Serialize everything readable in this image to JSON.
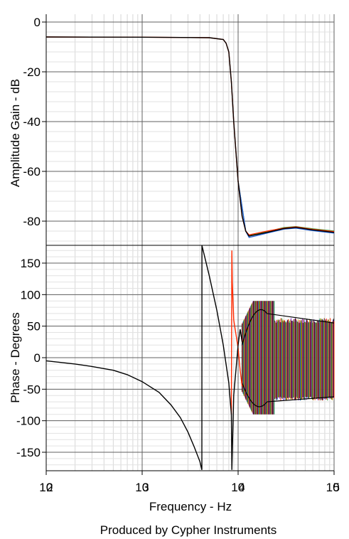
{
  "chart_data": [
    {
      "type": "line",
      "panel": "amplitude",
      "ylabel": "Amplitude Gain - dB",
      "x_scale": "log",
      "xlim": [
        100,
        100000
      ],
      "ylim": [
        -96,
        0
      ],
      "yticks": [
        0,
        -20,
        -40,
        -60,
        -80
      ],
      "ytick_labels": [
        "0",
        "-20",
        "-40",
        "-60",
        "-80"
      ],
      "grid": true,
      "series": [
        {
          "color": "#000000",
          "x": [
            100,
            1000,
            5000,
            7000,
            7500,
            8000,
            8500,
            9000,
            10000,
            11000,
            12000,
            13000,
            15000,
            20000,
            30000,
            40000,
            60000,
            100000
          ],
          "y": [
            -6.0,
            -6.1,
            -6.3,
            -7.0,
            -8.5,
            -12,
            -24,
            -40,
            -64,
            -78,
            -84,
            -86,
            -85.5,
            -84.5,
            -83,
            -82.5,
            -83.5,
            -84.5
          ]
        },
        {
          "color": "#ff2a00",
          "x": [
            100,
            1000,
            5000,
            7000,
            7500,
            8000,
            8500,
            9000,
            10000,
            11000,
            12000,
            13000,
            15000,
            20000,
            30000,
            40000,
            60000,
            100000
          ],
          "y": [
            -6.0,
            -6.1,
            -6.3,
            -7.0,
            -8.5,
            -12,
            -24,
            -40,
            -64,
            -78,
            -84,
            -85.5,
            -85,
            -84,
            -82.8,
            -82.3,
            -83.3,
            -84.2
          ]
        },
        {
          "color": "#1f5fd6",
          "x": [
            10000,
            12000,
            13000,
            15000,
            20000,
            30000,
            40000,
            60000,
            100000
          ],
          "y": [
            -64,
            -84,
            -86.5,
            -86,
            -84.8,
            -83.2,
            -82.8,
            -83.8,
            -84.8
          ]
        },
        {
          "color": "#2e9e3a",
          "x": [
            10000,
            12000,
            13000,
            15000,
            20000,
            30000,
            40000,
            60000,
            100000
          ],
          "y": [
            -64,
            -84,
            -85.8,
            -85.3,
            -84.2,
            -82.6,
            -82.2,
            -83.1,
            -84.0
          ]
        }
      ]
    },
    {
      "type": "line",
      "panel": "phase",
      "ylabel": "Phase - Degrees",
      "xlabel": "Frequency - Hz",
      "x_scale": "log",
      "xlim": [
        100,
        100000
      ],
      "ylim": [
        -180,
        180
      ],
      "yticks": [
        150,
        100,
        50,
        0,
        -50,
        -100,
        -150
      ],
      "ytick_labels": [
        "150",
        "100",
        "50",
        "0",
        "-50",
        "-100",
        "-150"
      ],
      "xtick_labels": [
        {
          "base": "10",
          "exp": "2"
        },
        {
          "base": "10",
          "exp": "3"
        },
        {
          "base": "10",
          "exp": "4"
        },
        {
          "base": "10",
          "exp": "5"
        }
      ],
      "grid": true,
      "series": [
        {
          "color": "#000000",
          "x": [
            100,
            150,
            200,
            300,
            500,
            700,
            1000,
            1500,
            2000,
            2500,
            3000,
            3500,
            4000,
            4190,
            4200,
            5000,
            6000,
            7000,
            8000,
            8500,
            8600,
            9000,
            10000,
            10500,
            11000
          ],
          "y": [
            -5,
            -8,
            -10,
            -14,
            -20,
            -27,
            -38,
            -55,
            -75,
            -95,
            -118,
            -142,
            -165,
            -178,
            178,
            130,
            75,
            20,
            -40,
            -90,
            -178,
            -60,
            20,
            45,
            25
          ]
        },
        {
          "color": "#ff2a00",
          "x": [
            8500,
            8600,
            8700,
            9000,
            10000,
            10500,
            11000
          ],
          "y": [
            -90,
            170,
            120,
            60,
            15,
            -20,
            -45
          ]
        }
      ],
      "noise_band": {
        "x_range": [
          11000,
          100000
        ],
        "upper": 90,
        "lower": -90,
        "settle_upper": 55,
        "settle_lower": -62
      }
    }
  ],
  "axes": {
    "xlabel": "Frequency - Hz"
  },
  "footer": {
    "text": "Produced by Cypher Instruments"
  }
}
